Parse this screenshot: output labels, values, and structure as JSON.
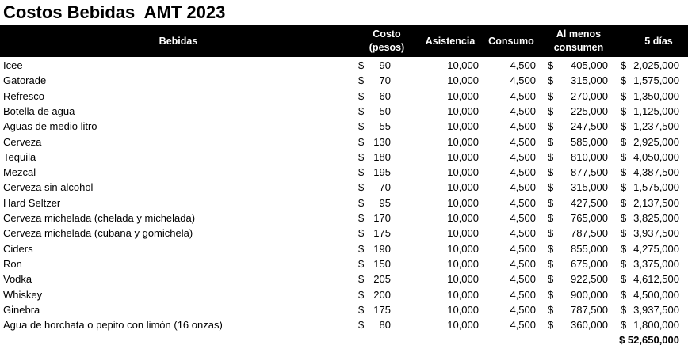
{
  "title": "Costos Bebidas  AMT 2023",
  "header": [
    "Bebidas",
    "Costo (pesos)",
    "Asistencia",
    "Consumo",
    "Al menos consumen",
    "5 días"
  ],
  "currency": "$",
  "rows": [
    [
      "Icee",
      "90",
      "10,000",
      "4,500",
      "405,000",
      "2,025,000"
    ],
    [
      "Gatorade",
      "70",
      "10,000",
      "4,500",
      "315,000",
      "1,575,000"
    ],
    [
      "Refresco",
      "60",
      "10,000",
      "4,500",
      "270,000",
      "1,350,000"
    ],
    [
      "Botella de agua",
      "50",
      "10,000",
      "4,500",
      "225,000",
      "1,125,000"
    ],
    [
      "Aguas de medio litro",
      "55",
      "10,000",
      "4,500",
      "247,500",
      "1,237,500"
    ],
    [
      "Cerveza",
      "130",
      "10,000",
      "4,500",
      "585,000",
      "2,925,000"
    ],
    [
      "Tequila",
      "180",
      "10,000",
      "4,500",
      "810,000",
      "4,050,000"
    ],
    [
      "Mezcal",
      "195",
      "10,000",
      "4,500",
      "877,500",
      "4,387,500"
    ],
    [
      "Cerveza sin alcohol",
      "70",
      "10,000",
      "4,500",
      "315,000",
      "1,575,000"
    ],
    [
      "Hard Seltzer",
      "95",
      "10,000",
      "4,500",
      "427,500",
      "2,137,500"
    ],
    [
      "Cerveza michelada (chelada y michelada)",
      "170",
      "10,000",
      "4,500",
      "765,000",
      "3,825,000"
    ],
    [
      "Cerveza michelada (cubana y gomichela)",
      "175",
      "10,000",
      "4,500",
      "787,500",
      "3,937,500"
    ],
    [
      "Ciders",
      "190",
      "10,000",
      "4,500",
      "855,000",
      "4,275,000"
    ],
    [
      "Ron",
      "150",
      "10,000",
      "4,500",
      "675,000",
      "3,375,000"
    ],
    [
      "Vodka",
      "205",
      "10,000",
      "4,500",
      "922,500",
      "4,612,500"
    ],
    [
      "Whiskey",
      "200",
      "10,000",
      "4,500",
      "900,000",
      "4,500,000"
    ],
    [
      "Ginebra",
      "175",
      "10,000",
      "4,500",
      "787,500",
      "3,937,500"
    ],
    [
      "Agua de horchata o pepito con limón (16 onzas)",
      "80",
      "10,000",
      "4,500",
      "360,000",
      "1,800,000"
    ]
  ],
  "total": "$ 52,650,000"
}
